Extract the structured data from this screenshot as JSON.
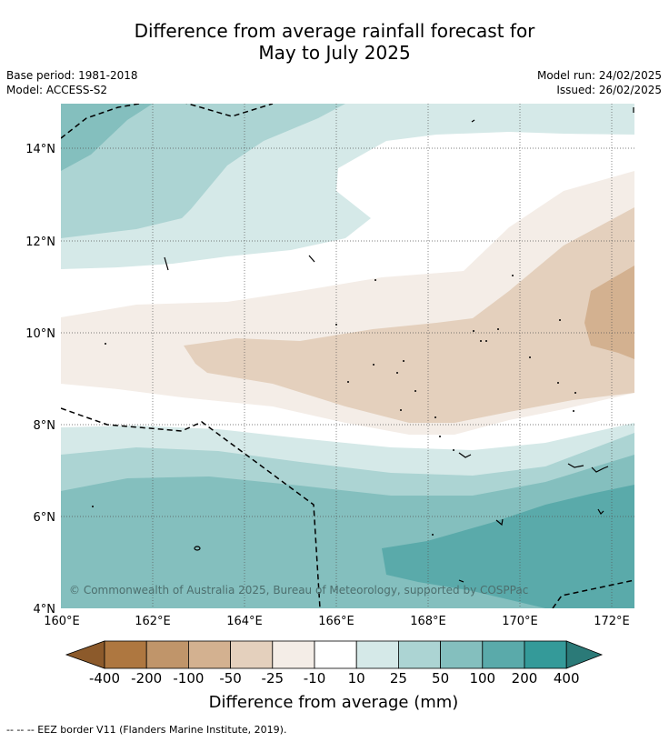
{
  "title": {
    "line1": "Difference from average rainfall forecast for",
    "line2": "May to July 2025"
  },
  "meta": {
    "base_period": "Base period: 1981-2018",
    "model": "Model: ACCESS-S2",
    "model_run": "Model run: 24/02/2025",
    "issued": "Issued: 26/02/2025"
  },
  "map": {
    "lat_labels": [
      "14°N",
      "12°N",
      "10°N",
      "8°N",
      "6°N",
      "4°N"
    ],
    "lon_labels": [
      "160°E",
      "162°E",
      "164°E",
      "166°E",
      "168°E",
      "170°E",
      "172°E"
    ],
    "copyright": "© Commonwealth of Australia 2025, Bureau of Meteorology, supported by COSPPac",
    "extent": {
      "lon": [
        160,
        172.5
      ],
      "lat": [
        4,
        15
      ]
    }
  },
  "legend": {
    "labels": [
      "-400",
      "-200",
      "-100",
      "-50",
      "-25",
      "-10",
      "10",
      "25",
      "50",
      "100",
      "200",
      "400"
    ],
    "colors": [
      "#8c5a2b",
      "#ae7740",
      "#c0956a",
      "#d3b190",
      "#e4d0bd",
      "#f4ede7",
      "#ffffff",
      "#d5e9e8",
      "#acd4d3",
      "#84bfbe",
      "#5aaaaa",
      "#349a99",
      "#2b7a78"
    ],
    "title": "Difference from average (mm)"
  },
  "footnote": "--  --  -- EEZ border V11 (Flanders Marine Institute, 2019)."
}
